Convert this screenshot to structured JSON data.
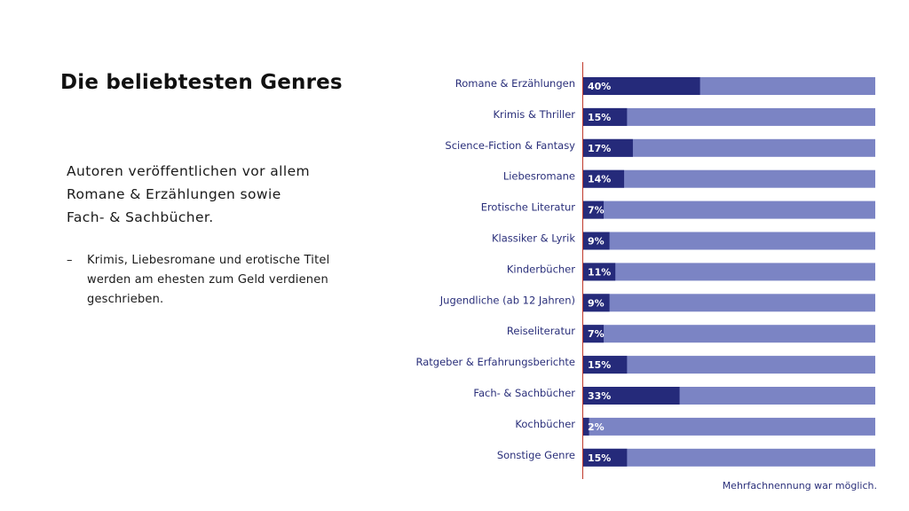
{
  "slide": {
    "title": "Die beliebtesten Genres",
    "intro_lines": [
      "Autoren veröffentlichen vor allem",
      "Romane & Erzählungen sowie",
      "Fach- & Sachbücher."
    ],
    "bullet_dash": "–",
    "bullet_lines": [
      "Krimis, Liebesromane und erotische Titel",
      "werden am ehesten zum Geld verdienen",
      "geschrieben."
    ],
    "footnote": "Mehrfachnennung war möglich."
  },
  "colors": {
    "bar_fill": "#252a7a",
    "bar_track": "#7b84c4",
    "axis_line": "#c0392b",
    "label_text": "#2a2f7a"
  },
  "chart_data": {
    "type": "bar",
    "orientation": "horizontal",
    "categories": [
      "Romane & Erzählungen",
      "Krimis & Thriller",
      "Science-Fiction & Fantasy",
      "Liebesromane",
      "Erotische Literatur",
      "Klassiker & Lyrik",
      "Kinderbücher",
      "Jugendliche (ab 12 Jahren)",
      "Reiseliteratur",
      "Ratgeber & Erfahrungsberichte",
      "Fach- & Sachbücher",
      "Kochbücher",
      "Sonstige Genre"
    ],
    "values": [
      40,
      15,
      17,
      14,
      7,
      9,
      11,
      9,
      7,
      15,
      33,
      2,
      15
    ],
    "value_labels": [
      "40%",
      "15%",
      "17%",
      "14%",
      "7%",
      "9%",
      "11%",
      "9%",
      "7%",
      "15%",
      "33%",
      "2%",
      "15%"
    ],
    "xlim": [
      0,
      100
    ],
    "unit": "%",
    "grid": false
  }
}
